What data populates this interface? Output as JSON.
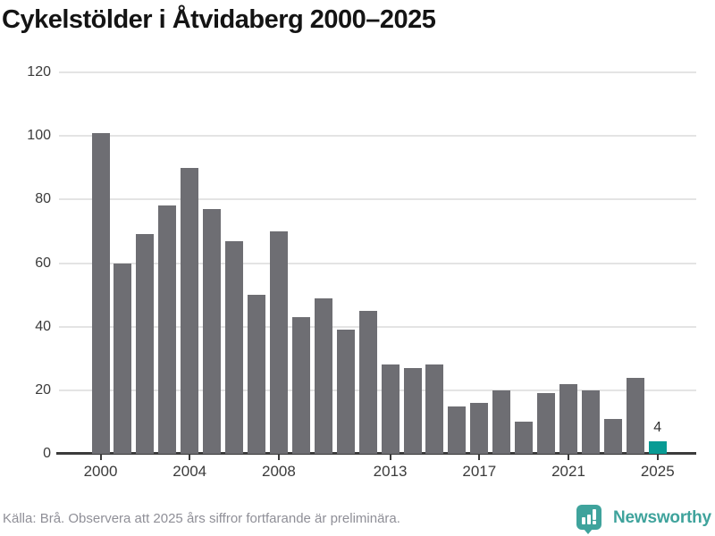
{
  "chart_data": {
    "type": "bar",
    "title": "Cykelstölder i Åtvidaberg 2000–2025",
    "categories": [
      "2000",
      "2001",
      "2002",
      "2003",
      "2004",
      "2005",
      "2006",
      "2007",
      "2008",
      "2009",
      "2010",
      "2011",
      "2012",
      "2013",
      "2014",
      "2015",
      "2016",
      "2017",
      "2018",
      "2019",
      "2020",
      "2021",
      "2022",
      "2023",
      "2024",
      "2025"
    ],
    "values": [
      101,
      60,
      69,
      78,
      90,
      77,
      67,
      50,
      70,
      43,
      49,
      39,
      45,
      28,
      27,
      28,
      15,
      16,
      20,
      10,
      19,
      22,
      20,
      11,
      24,
      4
    ],
    "x_tick_labels": [
      "2000",
      "2004",
      "2008",
      "2013",
      "2017",
      "2021",
      "2025"
    ],
    "y_ticks": [
      0,
      20,
      40,
      60,
      80,
      100,
      120
    ],
    "ylim": [
      0,
      120
    ],
    "xlabel": "",
    "ylabel": "",
    "grid": "horizontal",
    "legend": "none",
    "bar_color": "#6e6e73",
    "highlight_index": 25,
    "highlight_color": "#089b94",
    "value_labels": {
      "25": "4"
    }
  },
  "footer": {
    "source_note": "Källa: Brå. Observera att 2025 års siffror fortfarande är preliminära.",
    "brand_name": "Newsworthy"
  },
  "colors": {
    "bar_gray": "#6e6e73",
    "accent_teal": "#089b94",
    "brand_teal": "#3fa39c",
    "grid_gray": "#e4e4e4",
    "axis_dark": "#3b3b3b",
    "muted_text": "#8f8f97"
  }
}
